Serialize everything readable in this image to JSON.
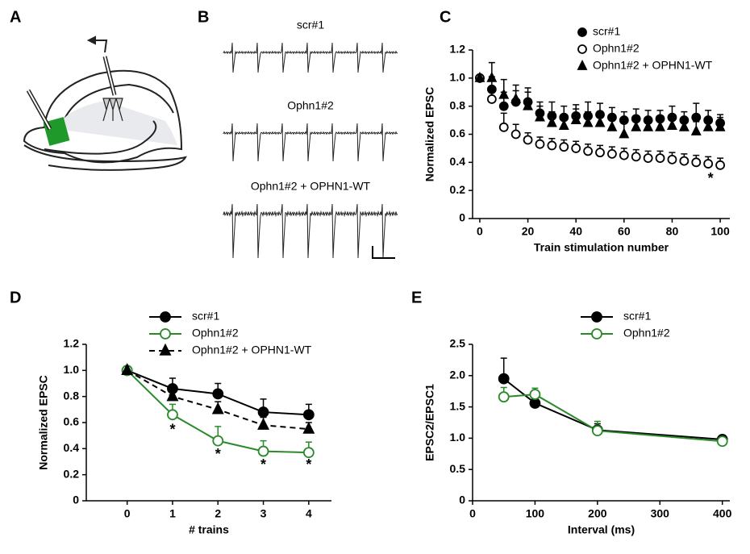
{
  "panels": {
    "a": "A",
    "b": "B",
    "c": "C",
    "d": "D",
    "e": "E"
  },
  "traces": {
    "labels": [
      "scr#1",
      "Ophn1#2",
      "Ophn1#2 + OPHN1-WT"
    ]
  },
  "chart_data": [
    {
      "type": "scatter",
      "xlabel": "Train stimulation number",
      "ylabel": "Normalized EPSC",
      "xlim": [
        -3,
        104
      ],
      "xticks": [
        0,
        20,
        40,
        60,
        80,
        100
      ],
      "ylim": [
        0,
        1.2
      ],
      "yticks": [
        0,
        0.2,
        0.4,
        0.6,
        0.8,
        {
          "value": 1,
          "label": "1.0"
        },
        1.2
      ],
      "x": [
        0,
        5,
        10,
        15,
        20,
        25,
        30,
        35,
        40,
        45,
        50,
        55,
        60,
        65,
        70,
        75,
        80,
        85,
        90,
        95,
        100
      ],
      "series": [
        {
          "name": "scr#1",
          "color": "#000000",
          "marker": "circle",
          "fill": "#000000",
          "line": "none",
          "values": [
            1.0,
            0.92,
            0.8,
            0.83,
            0.83,
            0.75,
            0.73,
            0.72,
            0.73,
            0.73,
            0.74,
            0.72,
            0.7,
            0.71,
            0.7,
            0.71,
            0.72,
            0.7,
            0.72,
            0.7,
            0.68
          ],
          "errors": [
            0,
            0.09,
            0.1,
            0.08,
            0.1,
            0.08,
            0.1,
            0.08,
            0.08,
            0.1,
            0.08,
            0.07,
            0.06,
            0.07,
            0.07,
            0.06,
            0.08,
            0.06,
            0.1,
            0.07,
            0.06
          ]
        },
        {
          "name": "Ophn1#2",
          "color": "#000000",
          "marker": "circle",
          "fill": "#ffffff",
          "line": "none",
          "values": [
            1.0,
            0.85,
            0.65,
            0.6,
            0.56,
            0.53,
            0.52,
            0.51,
            0.5,
            0.48,
            0.47,
            0.46,
            0.45,
            0.44,
            0.43,
            0.43,
            0.42,
            0.41,
            0.4,
            0.39,
            0.38
          ],
          "errors": [
            0,
            0.06,
            0.1,
            0.07,
            0.05,
            0.05,
            0.05,
            0.05,
            0.05,
            0.05,
            0.05,
            0.05,
            0.05,
            0.05,
            0.05,
            0.05,
            0.05,
            0.05,
            0.05,
            0.05,
            0.05
          ]
        },
        {
          "name": "Ophn1#2 + OPHN1-WT",
          "color": "#000000",
          "marker": "triangle",
          "fill": "#000000",
          "line": "none",
          "values": [
            1.0,
            1.0,
            0.88,
            0.85,
            0.8,
            0.72,
            0.68,
            0.66,
            0.7,
            0.68,
            0.68,
            0.65,
            0.6,
            0.65,
            0.65,
            0.65,
            0.66,
            0.65,
            0.62,
            0.65,
            0.65
          ],
          "errors": [
            0,
            0.11,
            0.11,
            0.1,
            0.1,
            0.08,
            0.08,
            0.08,
            0.08,
            0.08,
            0.08,
            0.08,
            0.08,
            0.07,
            0.07,
            0.07,
            0.07,
            0.07,
            0.07,
            0.07,
            0.07
          ]
        }
      ],
      "annotations": [
        {
          "text": "*",
          "x": 96,
          "y": 0.28
        }
      ]
    },
    {
      "type": "line",
      "xlabel": "# trains",
      "ylabel": "Normalized EPSC",
      "xlim": [
        -0.9,
        4.5
      ],
      "xticks": [
        0,
        1,
        2,
        3,
        4
      ],
      "ylim": [
        0,
        1.2
      ],
      "yticks": [
        0,
        0.2,
        0.4,
        0.6,
        0.8,
        {
          "value": 1,
          "label": "1.0"
        },
        1.2
      ],
      "x": [
        0,
        1,
        2,
        3,
        4
      ],
      "series": [
        {
          "name": "scr#1",
          "color": "#000000",
          "marker": "circle",
          "fill": "#000000",
          "line": "solid",
          "values": [
            1.0,
            0.86,
            0.82,
            0.68,
            0.66
          ],
          "errors": [
            0,
            0.08,
            0.08,
            0.1,
            0.08
          ]
        },
        {
          "name": "Ophn1#2",
          "color": "#2a8a2a",
          "marker": "circle",
          "fill": "#ffffff",
          "line": "solid",
          "values": [
            1.0,
            0.66,
            0.46,
            0.38,
            0.37
          ],
          "errors": [
            0,
            0.08,
            0.11,
            0.08,
            0.08
          ]
        },
        {
          "name": "Ophn1#2 + OPHN1-WT",
          "color": "#000000",
          "marker": "triangle",
          "fill": "#000000",
          "line": "dashed",
          "values": [
            1.0,
            0.8,
            0.7,
            0.58,
            0.55
          ],
          "errors": [
            0,
            0.06,
            0.06,
            0.06,
            0.05
          ]
        }
      ],
      "annotations": [
        {
          "text": "*",
          "x": 1,
          "y": 0.54
        },
        {
          "text": "*",
          "x": 2,
          "y": 0.35
        },
        {
          "text": "*",
          "x": 3,
          "y": 0.27
        },
        {
          "text": "*",
          "x": 4,
          "y": 0.27
        }
      ]
    },
    {
      "type": "line",
      "xlabel": "Interval (ms)",
      "ylabel": "EPSC2/EPSC1",
      "xlim": [
        0,
        412
      ],
      "xticks": [
        0,
        100,
        200,
        300,
        400
      ],
      "ylim": [
        0,
        2.5
      ],
      "yticks": [
        0,
        0.5,
        {
          "value": 1,
          "label": "1.0"
        },
        1.5,
        {
          "value": 2,
          "label": "2.0"
        },
        2.5
      ],
      "x": [
        50,
        100,
        200,
        400
      ],
      "series": [
        {
          "name": "scr#1",
          "color": "#000000",
          "marker": "circle",
          "fill": "#000000",
          "line": "solid",
          "values": [
            1.95,
            1.56,
            1.13,
            0.98
          ],
          "errors": [
            0.33,
            0.1,
            0.1,
            0.05
          ]
        },
        {
          "name": "Ophn1#2",
          "color": "#2a8a2a",
          "marker": "circle",
          "fill": "#ffffff",
          "line": "solid",
          "values": [
            1.66,
            1.7,
            1.12,
            0.95
          ],
          "errors": [
            0.15,
            0.1,
            0.15,
            0.05
          ]
        }
      ],
      "annotations": []
    }
  ]
}
